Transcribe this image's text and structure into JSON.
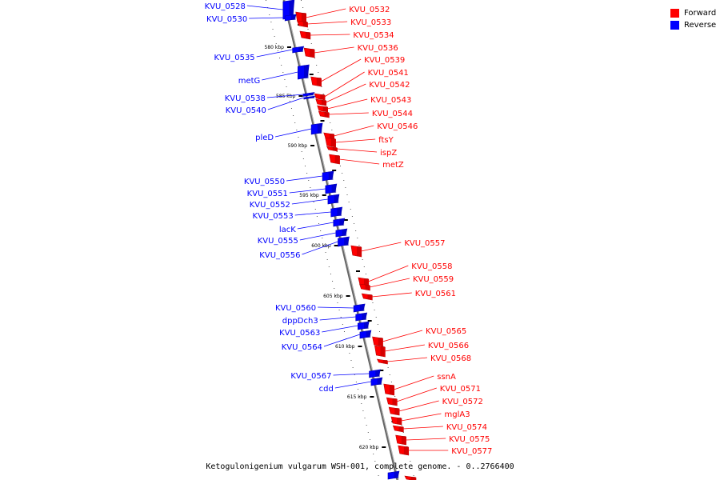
{
  "caption": "Ketogulonigenium vulgarum WSH-001, complete genome. - 0..2766400",
  "colors": {
    "forward": "#ff0000",
    "forward_dark": "#b30000",
    "reverse": "#0000ff",
    "reverse_dark": "#0000a8",
    "backbone": "#888888"
  },
  "legend": [
    {
      "label": "Forward",
      "color": "#ff0000"
    },
    {
      "label": "Reverse",
      "color": "#0000ff"
    }
  ],
  "ticks": [
    "580 kbp",
    "585 kbp",
    "590 kbp",
    "595 kbp",
    "600 kbp",
    "605 kbp",
    "610 kbp",
    "615 kbp",
    "620 kbp"
  ],
  "forward_genes": [
    "KVU_0532",
    "KVU_0533",
    "KVU_0534",
    "KVU_0536",
    "KVU_0539",
    "KVU_0541",
    "KVU_0542",
    "KVU_0543",
    "KVU_0544",
    "KVU_0546",
    "ftsY",
    "ispZ",
    "metZ",
    "KVU_0557",
    "KVU_0558",
    "KVU_0559",
    "KVU_0561",
    "KVU_0565",
    "KVU_0566",
    "KVU_0568",
    "ssnA",
    "KVU_0571",
    "KVU_0572",
    "mglA3",
    "KVU_0574",
    "KVU_0575",
    "KVU_0577"
  ],
  "reverse_genes": [
    "KVU_0528",
    "KVU_0530",
    "KVU_0535",
    "metG",
    "KVU_0538",
    "KVU_0540",
    "pleD",
    "KVU_0550",
    "KVU_0551",
    "KVU_0552",
    "KVU_0553",
    "lacK",
    "KVU_0555",
    "KVU_0556",
    "KVU_0560",
    "dppDch3",
    "KVU_0563",
    "KVU_0564",
    "KVU_0567",
    "cdd"
  ]
}
